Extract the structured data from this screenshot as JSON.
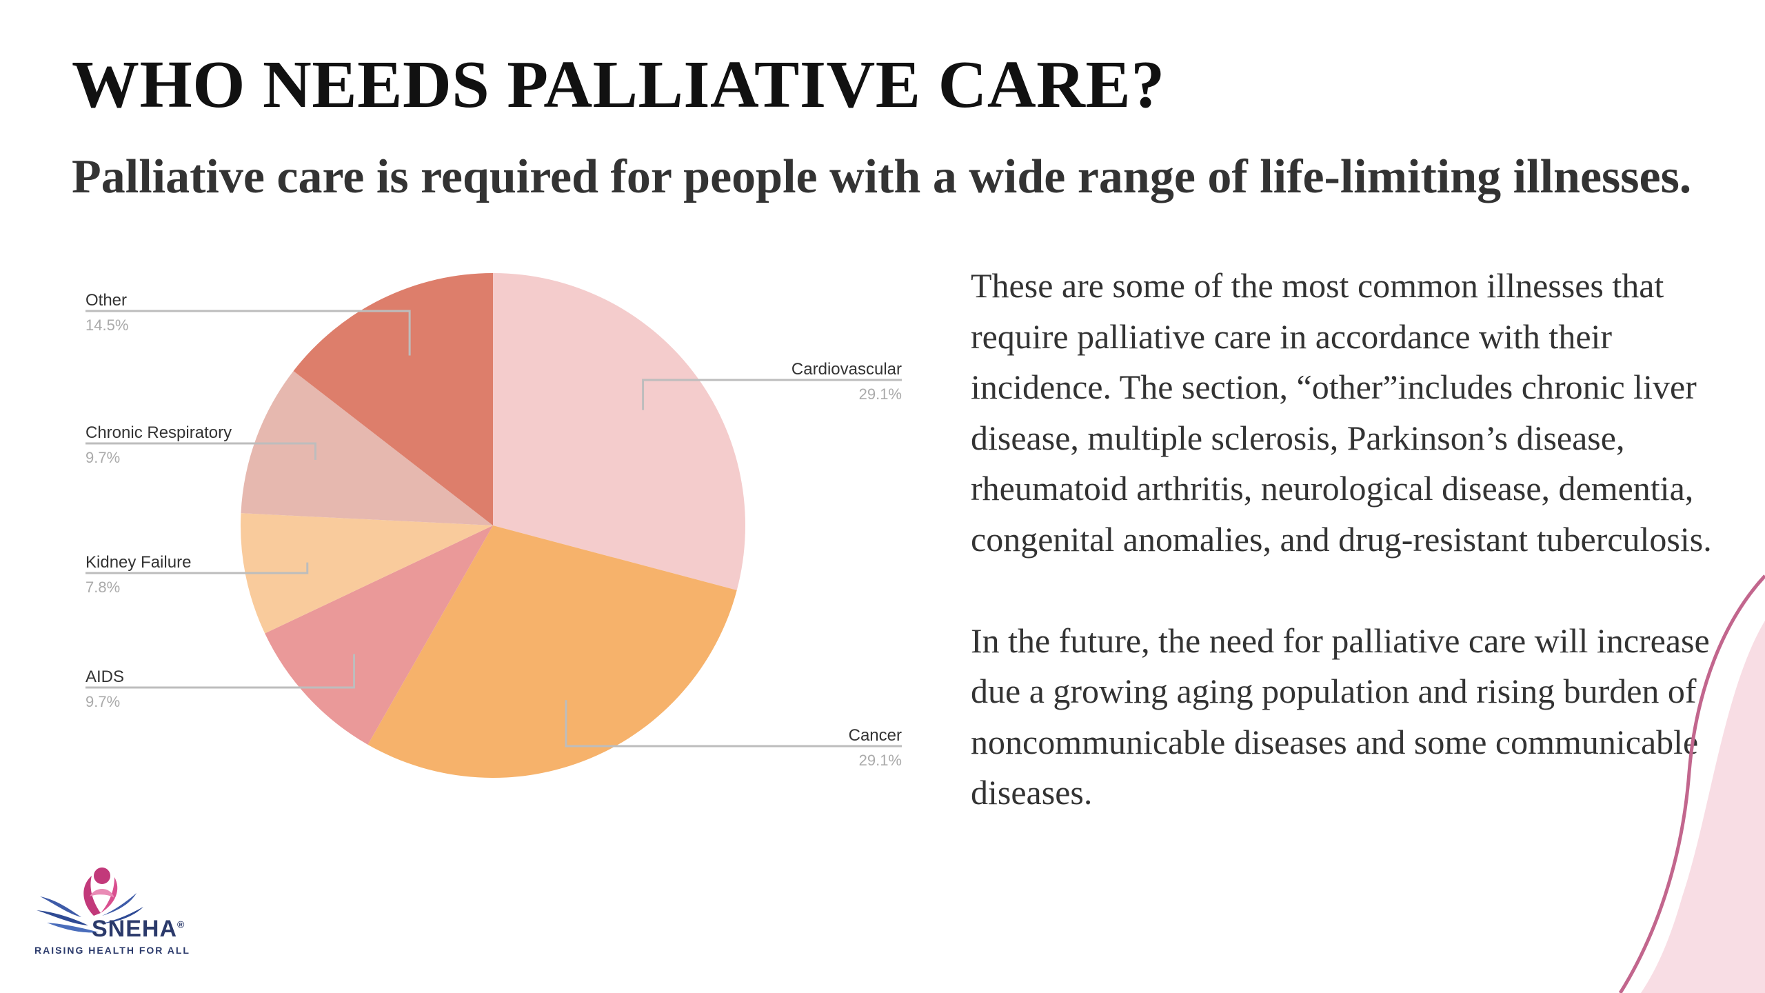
{
  "slide": {
    "title": "WHO NEEDS PALLIATIVE CARE?",
    "subtitle": "Palliative care is required for people with a wide range of life-limiting illnesses.",
    "paragraphs": [
      "These are some of the most common illnesses that require palliative care in accordance with their incidence. The section, “other”includes chronic liver disease, multiple sclerosis, Parkinson’s disease, rheumatoid arthritis, neurological disease, dementia, congenital anomalies, and drug-resistant tuberculosis.",
      "In the future, the need for palliative care will increase due a growing aging population and rising burden of noncommunicable diseases and some communicable diseases."
    ],
    "logo": {
      "wordmark": "SNEHA",
      "registered_mark": "®",
      "tagline": "RAISING HEALTH FOR ALL"
    }
  },
  "colors": {
    "title": "#111111",
    "body": "#333333",
    "leader_line": "#bdbdbd",
    "label": "#333333",
    "percent_label": "#aaaaaa",
    "deco_curve": "#c2668d",
    "deco_fill": "#f8dde4"
  },
  "chart_data": {
    "type": "pie",
    "title": "",
    "start_angle_deg": 0,
    "direction": "clockwise",
    "legend": "none (leader-line labels)",
    "slices": [
      {
        "name": "Cardiovascular",
        "value": 29.1,
        "label": "29.1%",
        "color": "#f4cccc",
        "side": "right"
      },
      {
        "name": "Cancer",
        "value": 29.1,
        "label": "29.1%",
        "color": "#f6b26b",
        "side": "right"
      },
      {
        "name": "AIDS",
        "value": 9.7,
        "label": "9.7%",
        "color": "#ea9999",
        "side": "left"
      },
      {
        "name": "Kidney Failure",
        "value": 7.8,
        "label": "7.8%",
        "color": "#f9cb9c",
        "side": "left"
      },
      {
        "name": "Chronic Respiratory",
        "value": 9.7,
        "label": "9.7%",
        "color": "#e6b8af",
        "side": "left"
      },
      {
        "name": "Other",
        "value": 14.5,
        "label": "14.5%",
        "color": "#dd7e6b",
        "side": "left"
      }
    ]
  }
}
